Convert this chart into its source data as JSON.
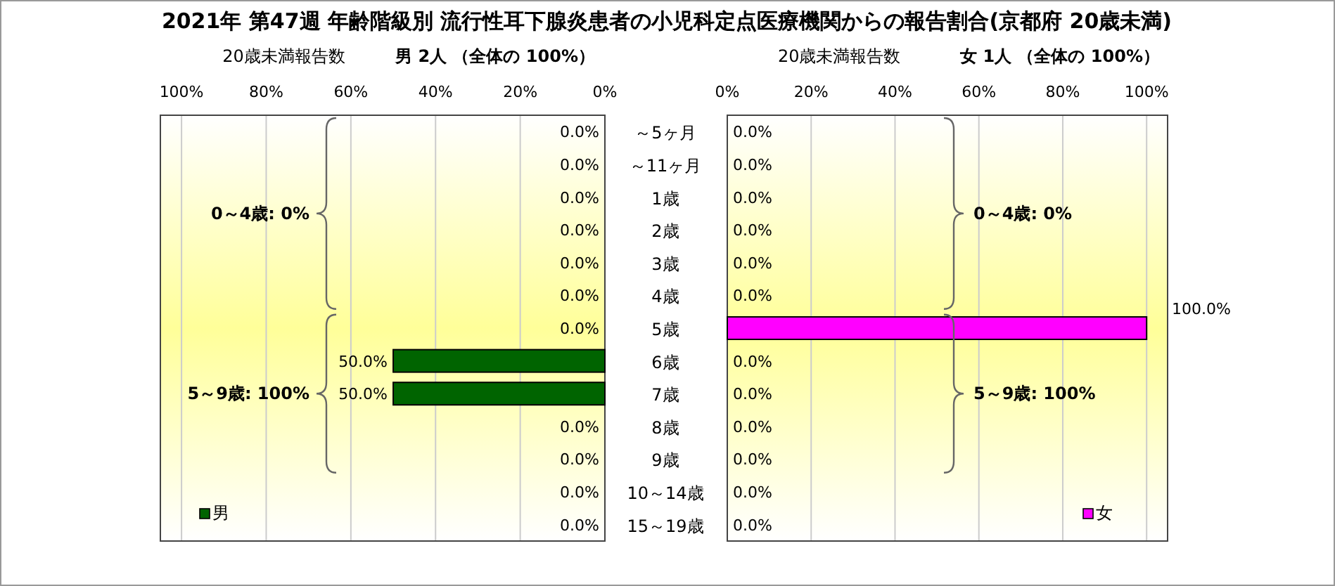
{
  "chart_data": [
    {
      "type": "bar",
      "orientation": "horizontal",
      "title": "2021年 第47週 年齢階級別 流行性耳下腺炎患者の小児科定点医療機関からの報告割合(京都府 20歳未満)",
      "subtitle": "男 2人 （全体の  100%）",
      "xlabel": "20歳未満報告数",
      "categories": [
        "～5ヶ月",
        "～11ヶ月",
        "1歳",
        "2歳",
        "3歳",
        "4歳",
        "5歳",
        "6歳",
        "7歳",
        "8歳",
        "9歳",
        "10～14歳",
        "15～19歳"
      ],
      "series": [
        {
          "name": "男",
          "color": "#006400",
          "values": [
            0,
            0,
            0,
            0,
            0,
            0,
            0,
            50,
            50,
            0,
            0,
            0,
            0
          ],
          "value_labels": [
            "0.0%",
            "0.0%",
            "0.0%",
            "0.0%",
            "0.0%",
            "0.0%",
            "0.0%",
            "50.0%",
            "50.0%",
            "0.0%",
            "0.0%",
            "0.0%",
            "0.0%"
          ]
        }
      ],
      "xlim": [
        105,
        0
      ],
      "xticks": [
        {
          "value": 100,
          "label": "100%"
        },
        {
          "value": 80,
          "label": "80%"
        },
        {
          "value": 60,
          "label": "60%"
        },
        {
          "value": 40,
          "label": "40%"
        },
        {
          "value": 20,
          "label": "20%"
        },
        {
          "value": 0,
          "label": "0%"
        }
      ],
      "grid": "x",
      "legend": "bottom left",
      "annotations": [
        "0～4歳: 0%",
        "5～9歳: 100%"
      ]
    },
    {
      "type": "bar",
      "orientation": "horizontal",
      "subtitle": "女  1人 （全体の  100%）",
      "xlabel": "20歳未満報告数",
      "categories": [
        null,
        null,
        null,
        null,
        null,
        null,
        null,
        null,
        null,
        null,
        null,
        null,
        null
      ],
      "series": [
        {
          "name": "女",
          "color": "#ff00ff",
          "values": [
            0,
            0,
            0,
            0,
            0,
            0,
            100,
            0,
            0,
            0,
            0,
            0,
            0
          ],
          "value_labels": [
            "0.0%",
            "0.0%",
            "0.0%",
            "0.0%",
            "0.0%",
            "0.0%",
            "100.0%",
            "0.0%",
            "0.0%",
            "0.0%",
            "0.0%",
            "0.0%",
            "0.0%"
          ]
        }
      ],
      "xlim": [
        0,
        105
      ],
      "xticks": [
        {
          "value": 0,
          "label": "0%"
        },
        {
          "value": 20,
          "label": "20%"
        },
        {
          "value": 40,
          "label": "40%"
        },
        {
          "value": 60,
          "label": "60%"
        },
        {
          "value": 80,
          "label": "80%"
        },
        {
          "value": 100,
          "label": "100%"
        }
      ],
      "grid": "x",
      "legend": "bottom right",
      "tick_labels": "x",
      "annotations": [
        "0～4歳: 0%",
        "5～9歳: 100%"
      ]
    }
  ]
}
